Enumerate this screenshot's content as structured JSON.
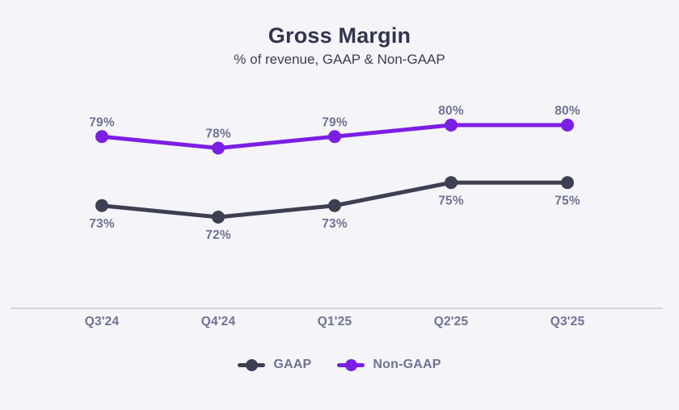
{
  "header": {
    "title": "Gross Margin",
    "subtitle": "% of revenue, GAAP & Non-GAAP"
  },
  "colors": {
    "background": "#f5f5f9",
    "title_text": "#33344e",
    "label_text": "#6f7393",
    "axis_line": "#c9cad6",
    "gaap": "#3d3f53",
    "non_gaap": "#7b1fe4"
  },
  "chart_data": {
    "type": "line",
    "title": "Gross Margin",
    "subtitle": "% of revenue, GAAP & Non-GAAP",
    "categories": [
      "Q3'24",
      "Q4'24",
      "Q1'25",
      "Q2'25",
      "Q3'25"
    ],
    "series": [
      {
        "name": "GAAP",
        "values": [
          73,
          72,
          73,
          75,
          75
        ],
        "color": "#3d3f53",
        "label_position": "below"
      },
      {
        "name": "Non-GAAP",
        "values": [
          79,
          78,
          79,
          80,
          80
        ],
        "color": "#7b1fe4",
        "label_position": "above"
      }
    ],
    "value_suffix": "%",
    "ylabel": "",
    "xlabel": "",
    "y_axis_visible": false,
    "grid": false,
    "legend_position": "bottom",
    "data_labels": true
  }
}
